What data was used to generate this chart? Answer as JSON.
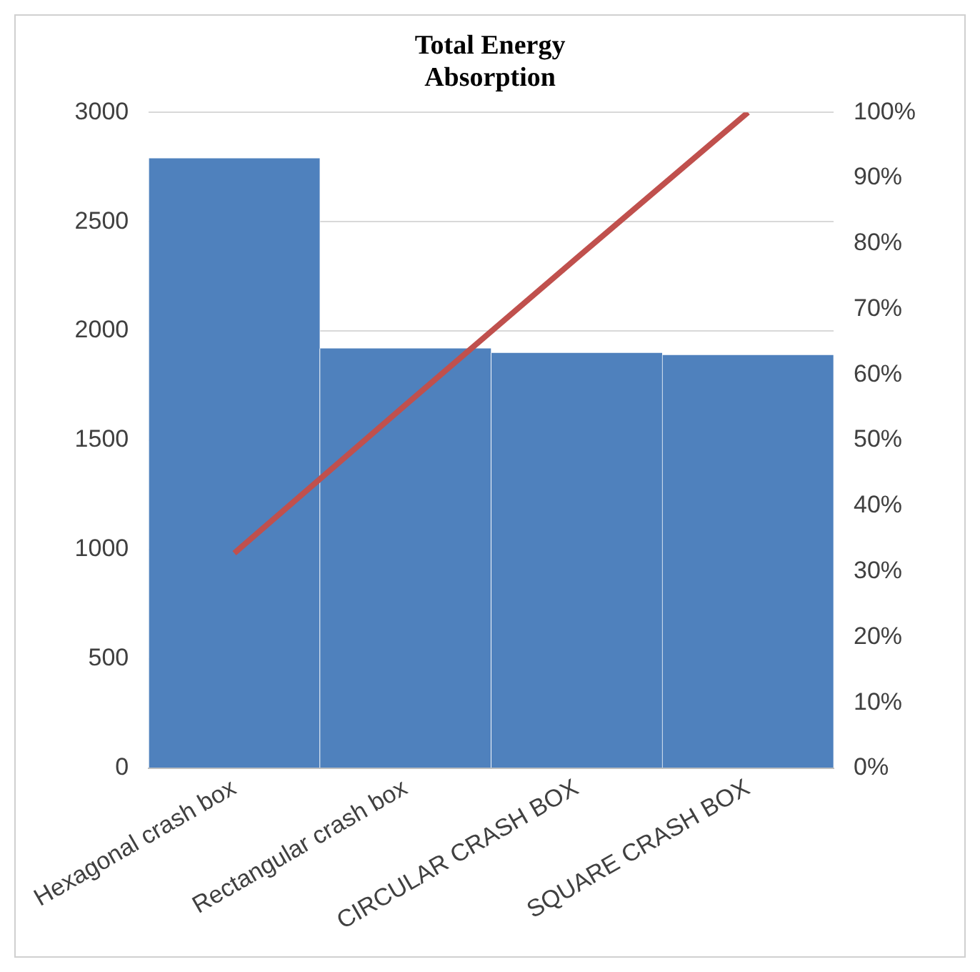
{
  "chart_data": {
    "type": "bar",
    "title": "Total Energy Absorption",
    "categories": [
      "Hexagonal crash box",
      "Rectangular crash box",
      "CIRCULAR CRASH BOX",
      "SQUARE CRASH BOX"
    ],
    "series": [
      {
        "color": "#4f81bd",
        "values": [
          2790,
          1920,
          1900,
          1890
        ]
      },
      {
        "type": "line",
        "axis": "y2",
        "color": "#c0504d",
        "values": [
          32.8,
          55.4,
          77.8,
          100
        ]
      }
    ],
    "ylim": [
      0,
      3000
    ],
    "yticks": [
      0,
      500,
      1000,
      1500,
      2000,
      2500,
      3000
    ],
    "y2lim": [
      0,
      100
    ],
    "y2ticks": [
      {
        "value": 0,
        "label": "0%"
      },
      {
        "value": 10,
        "label": "10%"
      },
      {
        "value": 20,
        "label": "20%"
      },
      {
        "value": 30,
        "label": "30%"
      },
      {
        "value": 40,
        "label": "40%"
      },
      {
        "value": 50,
        "label": "50%"
      },
      {
        "value": 60,
        "label": "60%"
      },
      {
        "value": 70,
        "label": "70%"
      },
      {
        "value": 80,
        "label": "80%"
      },
      {
        "value": 90,
        "label": "90%"
      },
      {
        "value": 100,
        "label": "100%"
      }
    ],
    "grid": "y",
    "marker": "none"
  }
}
